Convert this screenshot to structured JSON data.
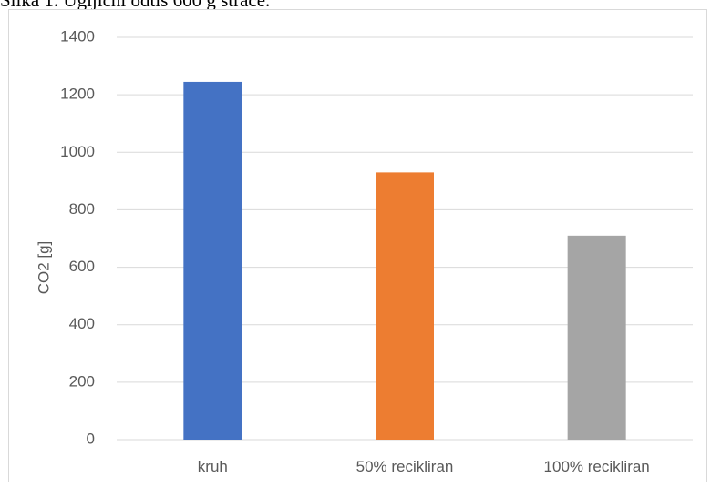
{
  "caption": "Slika 1. Ugljični odtis 600 g straće.",
  "chart_data": {
    "type": "bar",
    "categories": [
      "kruh",
      "50% recikliran",
      "100% recikliran"
    ],
    "values": [
      1245,
      930,
      710
    ],
    "colors": [
      "#4472c4",
      "#ed7d31",
      "#a5a5a5"
    ],
    "ylabel": "CO2 [g]",
    "xlabel": "",
    "ylim": [
      0,
      1400
    ],
    "yticks": [
      0,
      200,
      400,
      600,
      800,
      1000,
      1200,
      1400
    ],
    "grid": true,
    "legend": "none"
  }
}
